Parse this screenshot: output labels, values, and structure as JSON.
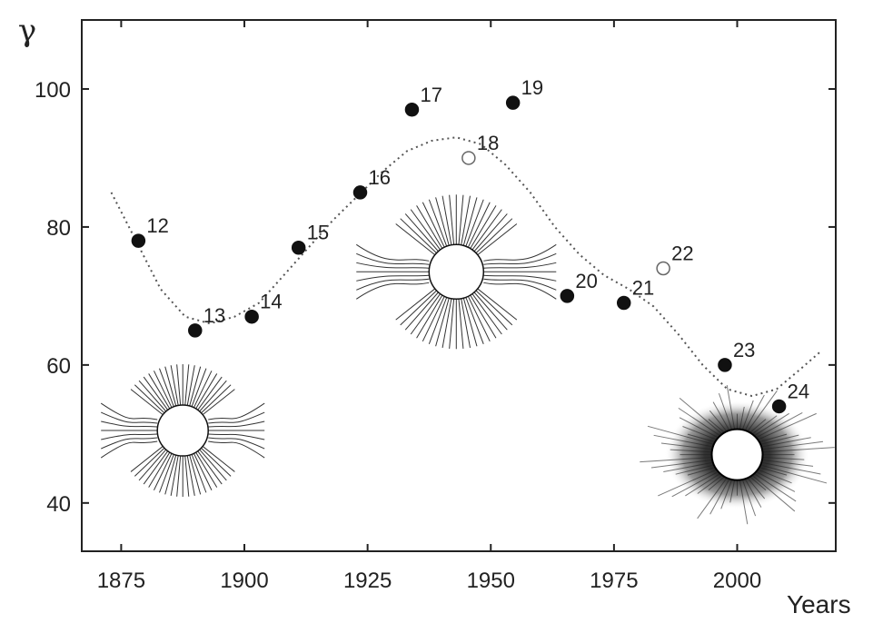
{
  "chart_data": {
    "type": "scatter",
    "xlabel": "Years",
    "ylabel": "γ",
    "xlim": [
      1867,
      2020
    ],
    "ylim": [
      33,
      110
    ],
    "x_ticks": [
      1875,
      1900,
      1925,
      1950,
      1975,
      2000
    ],
    "y_ticks": [
      40,
      60,
      80,
      100
    ],
    "grid": false,
    "points": [
      {
        "label": "12",
        "x": 1878.5,
        "y": 78,
        "filled": true
      },
      {
        "label": "13",
        "x": 1890,
        "y": 65,
        "filled": true
      },
      {
        "label": "14",
        "x": 1901.5,
        "y": 67,
        "filled": true
      },
      {
        "label": "15",
        "x": 1911,
        "y": 77,
        "filled": true
      },
      {
        "label": "16",
        "x": 1923.5,
        "y": 85,
        "filled": true
      },
      {
        "label": "17",
        "x": 1934,
        "y": 97,
        "filled": true
      },
      {
        "label": "18",
        "x": 1945.5,
        "y": 90,
        "filled": false
      },
      {
        "label": "19",
        "x": 1954.5,
        "y": 98,
        "filled": true
      },
      {
        "label": "20",
        "x": 1965.5,
        "y": 70,
        "filled": true
      },
      {
        "label": "21",
        "x": 1977,
        "y": 69,
        "filled": true
      },
      {
        "label": "22",
        "x": 1985,
        "y": 74,
        "filled": false
      },
      {
        "label": "23",
        "x": 1997.5,
        "y": 60,
        "filled": true
      },
      {
        "label": "24",
        "x": 2008.5,
        "y": 54,
        "filled": true
      }
    ],
    "trend_line": [
      {
        "x": 1873,
        "y": 85
      },
      {
        "x": 1878,
        "y": 78
      },
      {
        "x": 1883,
        "y": 71
      },
      {
        "x": 1888,
        "y": 67
      },
      {
        "x": 1893,
        "y": 66
      },
      {
        "x": 1898,
        "y": 67
      },
      {
        "x": 1903,
        "y": 69
      },
      {
        "x": 1908,
        "y": 73
      },
      {
        "x": 1913,
        "y": 77
      },
      {
        "x": 1918,
        "y": 81
      },
      {
        "x": 1923,
        "y": 84.5
      },
      {
        "x": 1928,
        "y": 88
      },
      {
        "x": 1933,
        "y": 91
      },
      {
        "x": 1938,
        "y": 92.5
      },
      {
        "x": 1943,
        "y": 93
      },
      {
        "x": 1948,
        "y": 92
      },
      {
        "x": 1953,
        "y": 89
      },
      {
        "x": 1958,
        "y": 85
      },
      {
        "x": 1963,
        "y": 80
      },
      {
        "x": 1968,
        "y": 76
      },
      {
        "x": 1973,
        "y": 73
      },
      {
        "x": 1978,
        "y": 71
      },
      {
        "x": 1983,
        "y": 68.5
      },
      {
        "x": 1988,
        "y": 64.5
      },
      {
        "x": 1993,
        "y": 60
      },
      {
        "x": 1998,
        "y": 56.5
      },
      {
        "x": 2003,
        "y": 55.5
      },
      {
        "x": 2008,
        "y": 56.5
      },
      {
        "x": 2013,
        "y": 59.5
      },
      {
        "x": 2017,
        "y": 62
      }
    ],
    "insets": [
      {
        "name": "corona-sketch-left",
        "x": 1887.5,
        "y": 50.5
      },
      {
        "name": "corona-sketch-middle",
        "x": 1943,
        "y": 73.5
      },
      {
        "name": "corona-photo-right",
        "x": 2000,
        "y": 47
      }
    ],
    "colors": {
      "axis": "#222222",
      "point": "#111111",
      "trend": "#555555",
      "sketch": "#333333"
    }
  }
}
